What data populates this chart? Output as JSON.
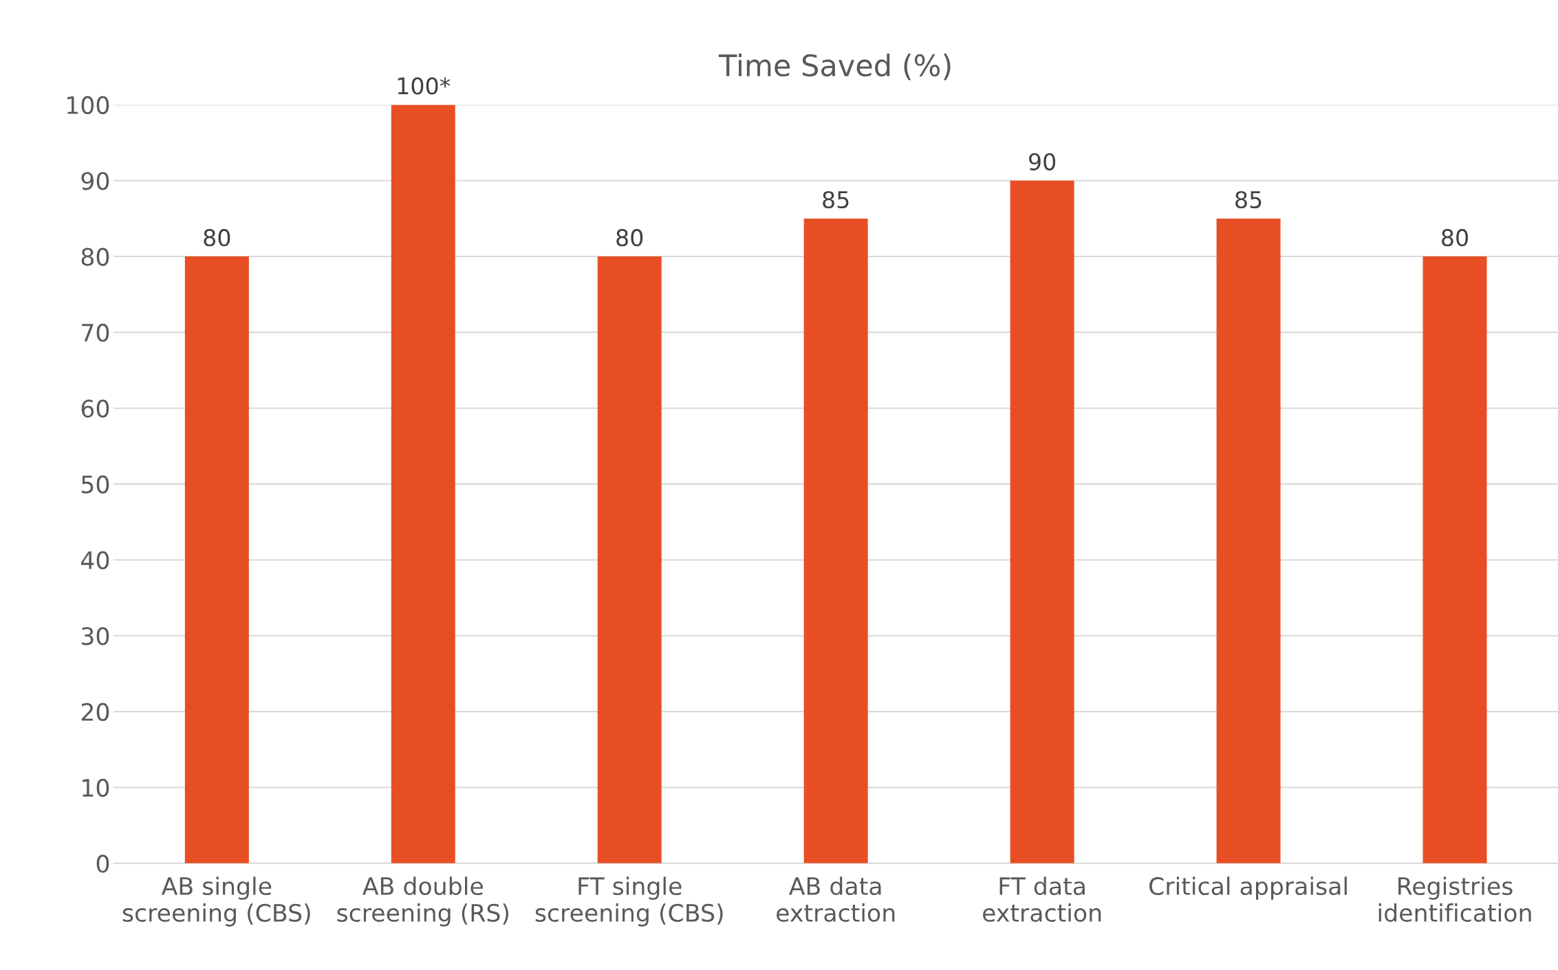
{
  "chart_data": {
    "type": "bar",
    "title": "Time Saved (%)",
    "categories": [
      "AB single\nscreening (CBS)",
      "AB double\nscreening (RS)",
      "FT single\nscreening (CBS)",
      "AB data\nextraction",
      "FT data\nextraction",
      "Critical appraisal",
      "Registries\nidentification"
    ],
    "values": [
      80,
      100,
      80,
      85,
      90,
      85,
      80
    ],
    "value_labels": [
      "80",
      "100*",
      "80",
      "85",
      "90",
      "85",
      "80"
    ],
    "color": "#e84e23",
    "ylim": [
      0,
      100
    ],
    "yticks": [
      0,
      10,
      20,
      30,
      40,
      50,
      60,
      70,
      80,
      90,
      100
    ],
    "grid": "y",
    "legend": false
  }
}
